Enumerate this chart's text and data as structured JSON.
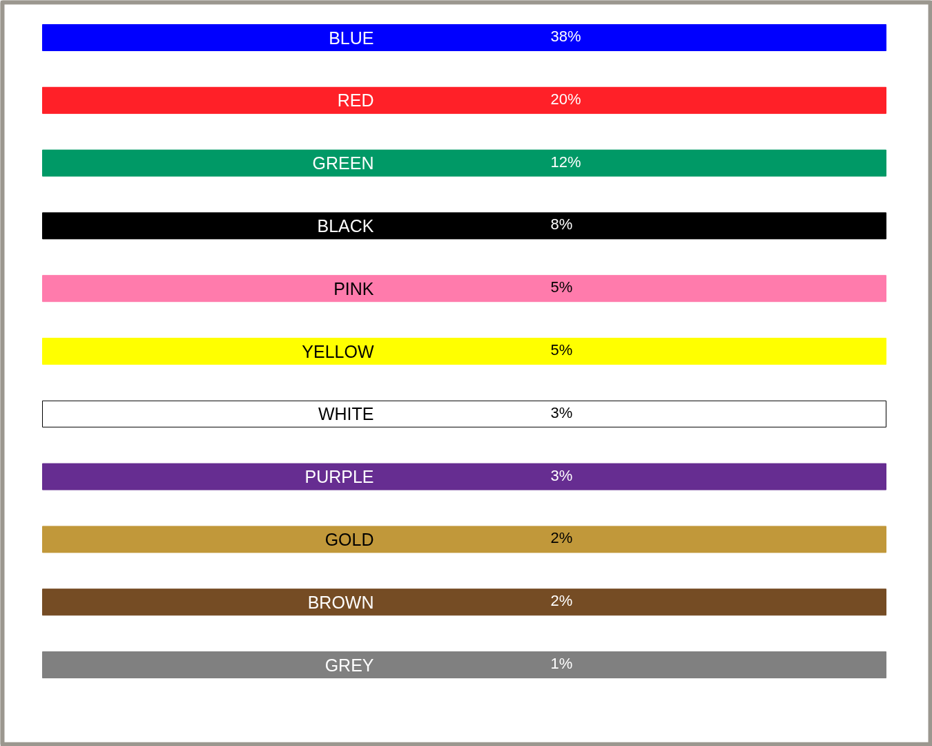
{
  "chart_data": {
    "type": "other",
    "categories": [
      "BLUE",
      "RED",
      "GREEN",
      "BLACK",
      "PINK",
      "YELLOW",
      "WHITE",
      "PURPLE",
      "GOLD",
      "BROWN",
      "GREY"
    ],
    "values": [
      38,
      20,
      12,
      8,
      5,
      5,
      3,
      3,
      2,
      2,
      1
    ],
    "value_labels": [
      "38%",
      "20%",
      "12%",
      "8%",
      "5%",
      "5%",
      "3%",
      "3%",
      "2%",
      "2%",
      "1%"
    ],
    "colors": [
      "#0000ff",
      "#ff2028",
      "#009966",
      "#000000",
      "#ff7bac",
      "#ffff00",
      "#ffffff",
      "#662d91",
      "#c1983a",
      "#754c24",
      "#808080"
    ]
  }
}
